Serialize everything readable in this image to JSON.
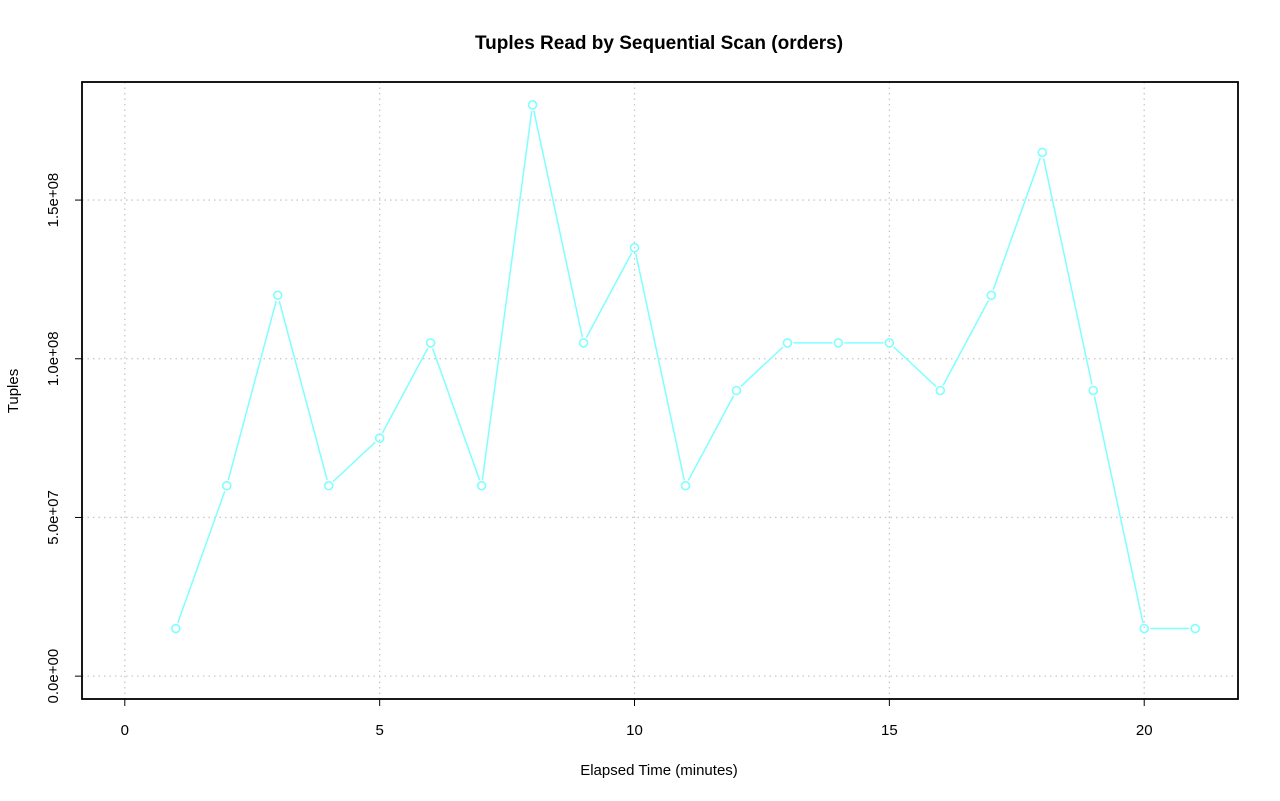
{
  "chart_data": {
    "type": "line",
    "title": "Tuples Read by Sequential Scan (orders)",
    "xlabel": "Elapsed Time (minutes)",
    "ylabel": "Tuples",
    "x_ticks": [
      0,
      5,
      10,
      15,
      20
    ],
    "y_ticks": [
      0,
      50000000,
      100000000,
      150000000
    ],
    "y_tick_labels": [
      "0.0e+00",
      "5.0e+07",
      "1.0e+08",
      "1.5e+08"
    ],
    "xlim": [
      -0.84,
      21.84
    ],
    "ylim": [
      -7200000,
      187200000
    ],
    "grid": true,
    "marker": "open-circle",
    "series": [
      {
        "color": "#7fffff",
        "x": [
          1,
          2,
          3,
          4,
          5,
          6,
          7,
          8,
          9,
          10,
          11,
          12,
          13,
          14,
          15,
          16,
          17,
          18,
          19,
          20,
          21
        ],
        "values": [
          15000000,
          60000000,
          120000000,
          60000000,
          75000000,
          105000000,
          60000000,
          180000000,
          105000000,
          135000000,
          60000000,
          90000000,
          105000000,
          105000000,
          105000000,
          90000000,
          120000000,
          165000000,
          90000000,
          15000000,
          15000000
        ]
      }
    ]
  }
}
